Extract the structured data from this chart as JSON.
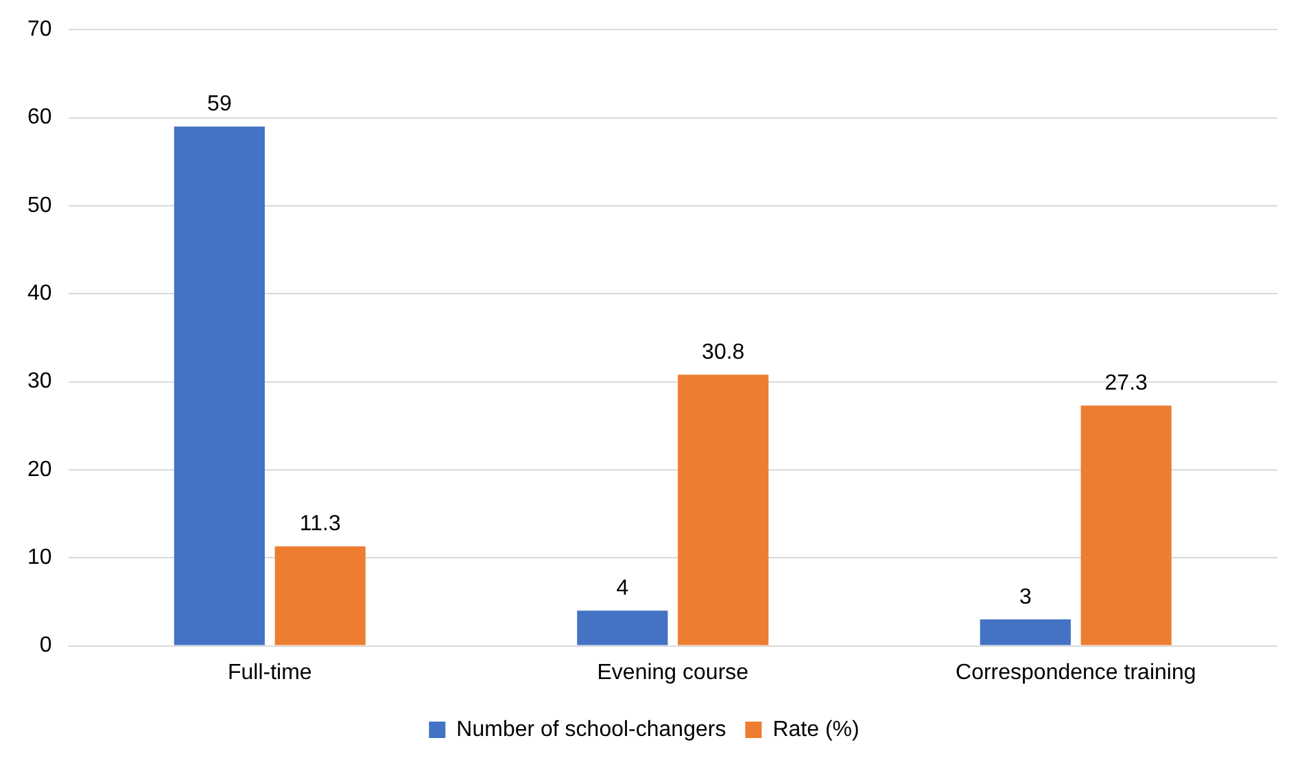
{
  "chart_data": {
    "type": "bar",
    "categories": [
      "Full-time",
      "Evening course",
      "Correspondence training"
    ],
    "series": [
      {
        "name": "Number of school-changers",
        "color": "#4472c4",
        "values": [
          59,
          4,
          3
        ]
      },
      {
        "name": "Rate (%)",
        "color": "#ed7d31",
        "values": [
          11.3,
          30.8,
          27.3
        ]
      }
    ],
    "ylim": [
      0,
      70
    ],
    "yticks": [
      0,
      10,
      20,
      30,
      40,
      50,
      60,
      70
    ],
    "grid": "y",
    "legend": "bottom",
    "data_labels": true
  }
}
